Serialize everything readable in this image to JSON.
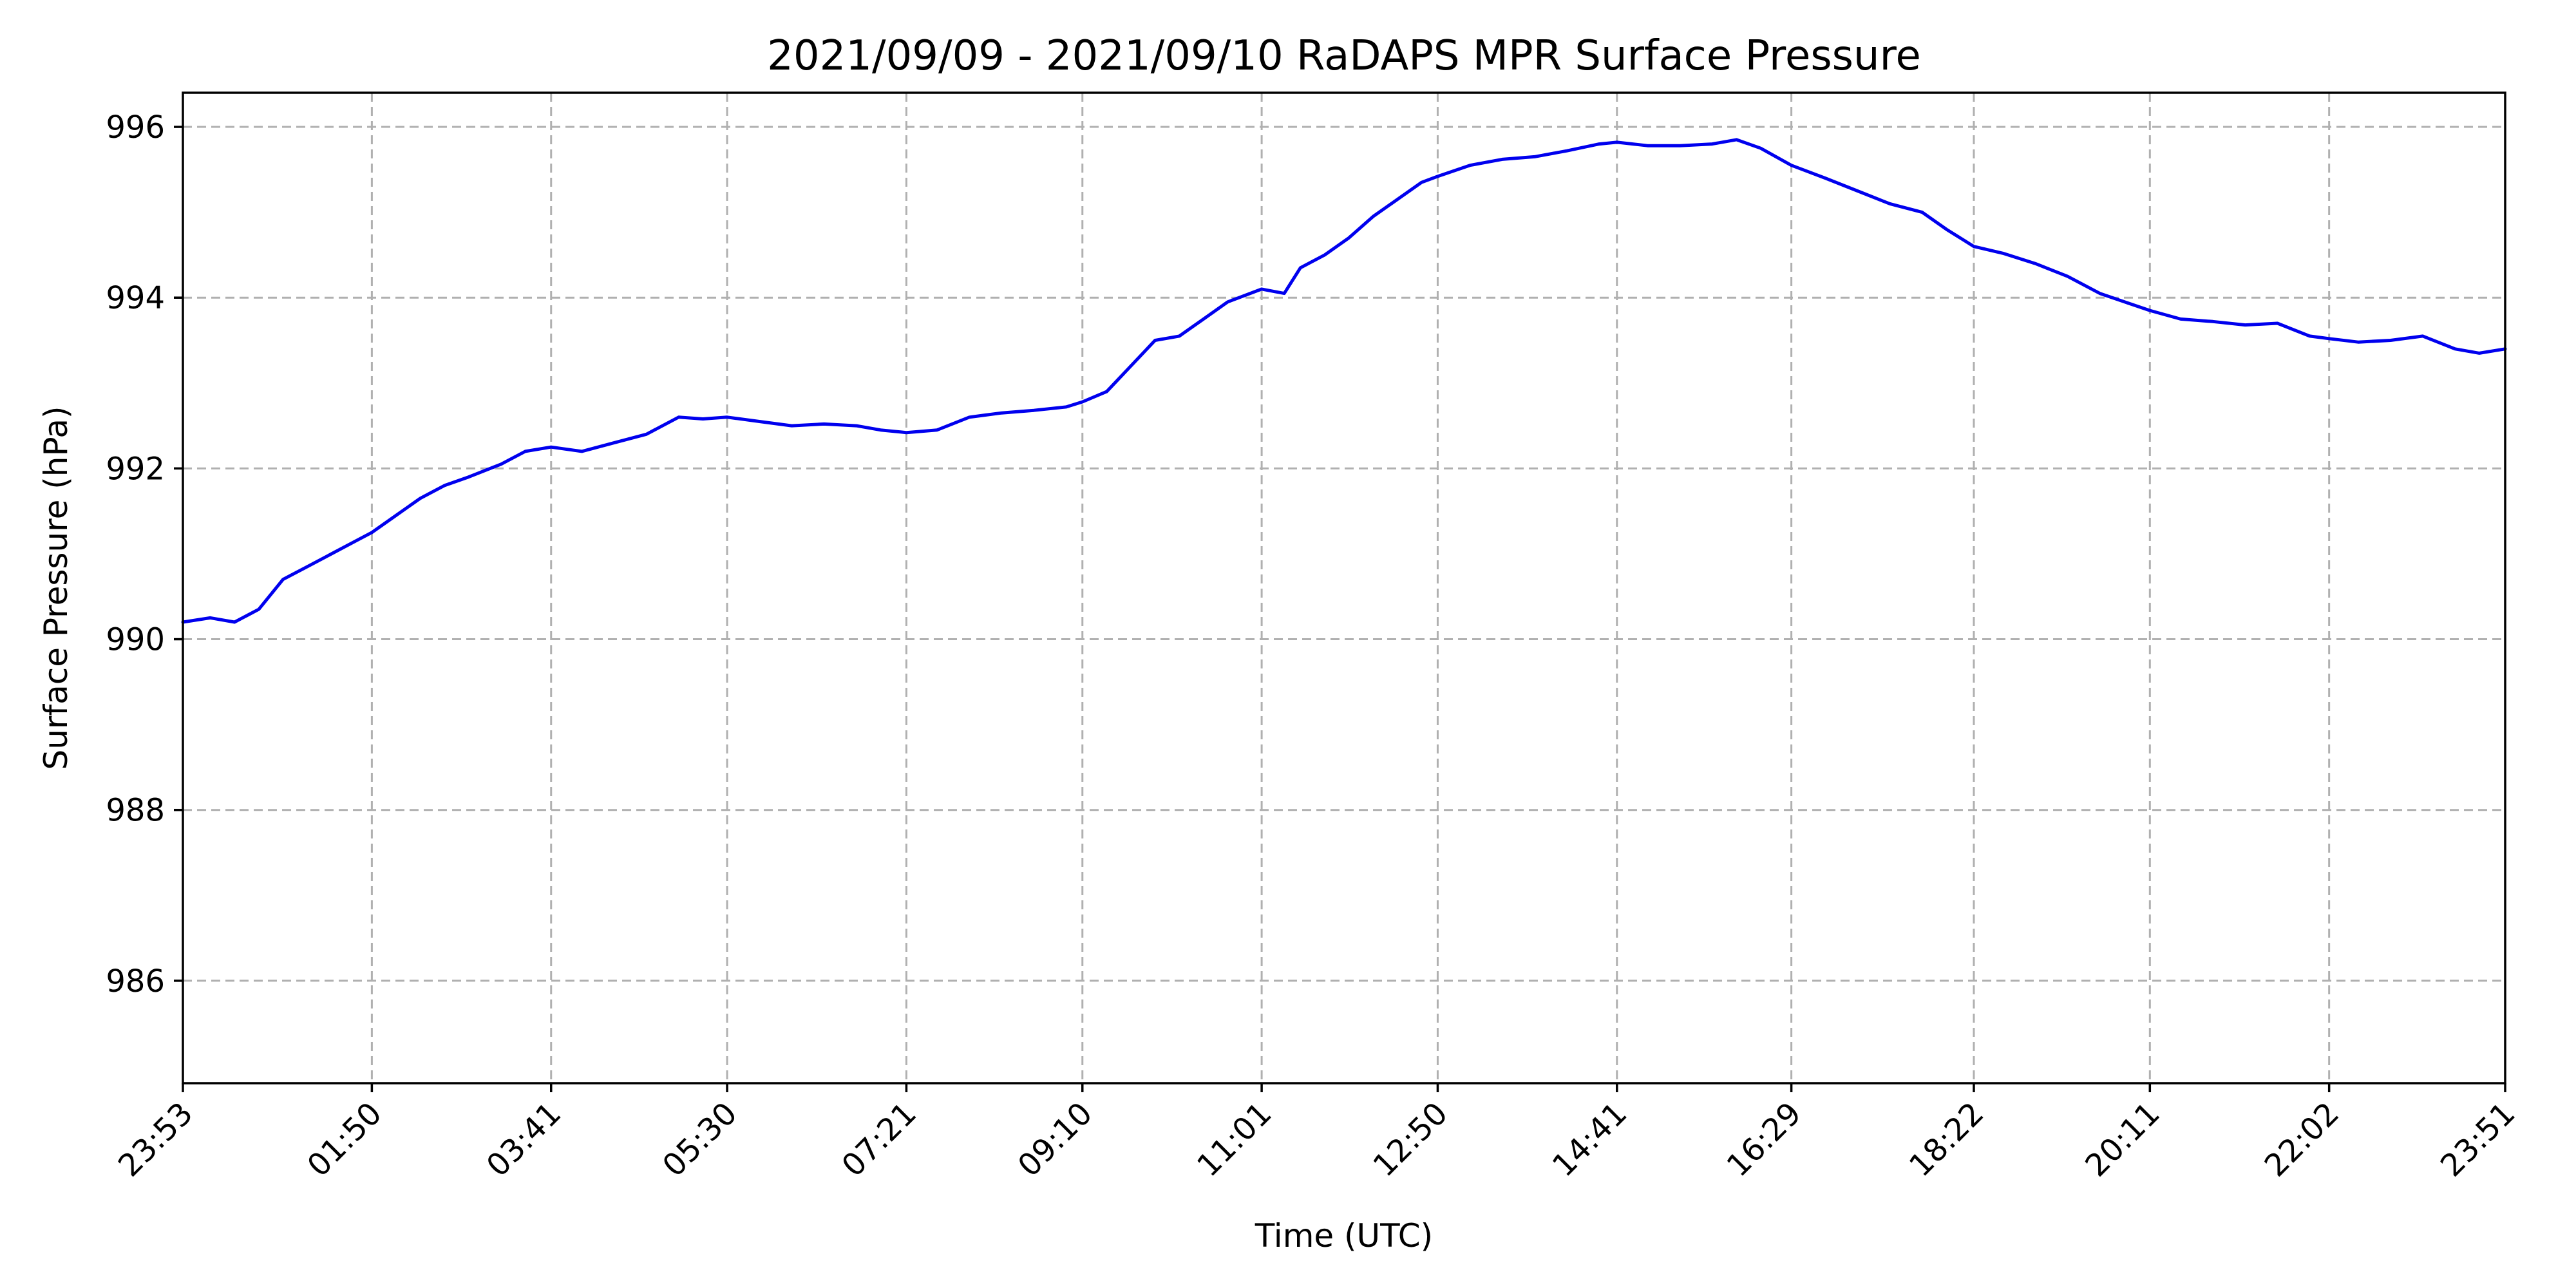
{
  "chart_data": {
    "type": "line",
    "title": "2021/09/09 - 2021/09/10 RaDAPS MPR Surface Pressure",
    "xlabel": "Time (UTC)",
    "ylabel": "Surface Pressure (hPa)",
    "xlim": [
      "2021-09-09T23:53",
      "2021-09-10T23:51"
    ],
    "ylim": [
      984.8,
      996.4
    ],
    "grid": true,
    "x_ticks": [
      {
        "label": "23:53",
        "time": "2021-09-09T23:53"
      },
      {
        "label": "01:50",
        "time": "2021-09-10T01:50"
      },
      {
        "label": "03:41",
        "time": "2021-09-10T03:41"
      },
      {
        "label": "05:30",
        "time": "2021-09-10T05:30"
      },
      {
        "label": "07:21",
        "time": "2021-09-10T07:21"
      },
      {
        "label": "09:10",
        "time": "2021-09-10T09:10"
      },
      {
        "label": "11:01",
        "time": "2021-09-10T11:01"
      },
      {
        "label": "12:50",
        "time": "2021-09-10T12:50"
      },
      {
        "label": "14:41",
        "time": "2021-09-10T14:41"
      },
      {
        "label": "16:29",
        "time": "2021-09-10T16:29"
      },
      {
        "label": "18:22",
        "time": "2021-09-10T18:22"
      },
      {
        "label": "20:11",
        "time": "2021-09-10T20:11"
      },
      {
        "label": "22:02",
        "time": "2021-09-10T22:02"
      },
      {
        "label": "23:51",
        "time": "2021-09-10T23:51"
      }
    ],
    "y_ticks": [
      986,
      988,
      990,
      992,
      994,
      996
    ],
    "series": [
      {
        "color": "#0000ee",
        "points": [
          [
            "2021-09-09T23:53",
            990.2
          ],
          [
            "2021-09-10T00:10",
            990.25
          ],
          [
            "2021-09-10T00:25",
            990.2
          ],
          [
            "2021-09-10T00:40",
            990.35
          ],
          [
            "2021-09-10T00:55",
            990.7
          ],
          [
            "2021-09-10T01:10",
            990.85
          ],
          [
            "2021-09-10T01:25",
            991.0
          ],
          [
            "2021-09-10T01:40",
            991.15
          ],
          [
            "2021-09-10T01:50",
            991.25
          ],
          [
            "2021-09-10T02:05",
            991.45
          ],
          [
            "2021-09-10T02:20",
            991.65
          ],
          [
            "2021-09-10T02:35",
            991.8
          ],
          [
            "2021-09-10T02:50",
            991.9
          ],
          [
            "2021-09-10T03:10",
            992.05
          ],
          [
            "2021-09-10T03:25",
            992.2
          ],
          [
            "2021-09-10T03:41",
            992.25
          ],
          [
            "2021-09-10T04:00",
            992.2
          ],
          [
            "2021-09-10T04:20",
            992.3
          ],
          [
            "2021-09-10T04:40",
            992.4
          ],
          [
            "2021-09-10T05:00",
            992.6
          ],
          [
            "2021-09-10T05:15",
            992.58
          ],
          [
            "2021-09-10T05:30",
            992.6
          ],
          [
            "2021-09-10T05:50",
            992.55
          ],
          [
            "2021-09-10T06:10",
            992.5
          ],
          [
            "2021-09-10T06:30",
            992.52
          ],
          [
            "2021-09-10T06:50",
            992.5
          ],
          [
            "2021-09-10T07:05",
            992.45
          ],
          [
            "2021-09-10T07:21",
            992.42
          ],
          [
            "2021-09-10T07:40",
            992.45
          ],
          [
            "2021-09-10T08:00",
            992.6
          ],
          [
            "2021-09-10T08:20",
            992.65
          ],
          [
            "2021-09-10T08:40",
            992.68
          ],
          [
            "2021-09-10T09:00",
            992.72
          ],
          [
            "2021-09-10T09:10",
            992.78
          ],
          [
            "2021-09-10T09:25",
            992.9
          ],
          [
            "2021-09-10T09:40",
            993.2
          ],
          [
            "2021-09-10T09:55",
            993.5
          ],
          [
            "2021-09-10T10:10",
            993.55
          ],
          [
            "2021-09-10T10:25",
            993.75
          ],
          [
            "2021-09-10T10:40",
            993.95
          ],
          [
            "2021-09-10T11:01",
            994.1
          ],
          [
            "2021-09-10T11:15",
            994.05
          ],
          [
            "2021-09-10T11:25",
            994.35
          ],
          [
            "2021-09-10T11:40",
            994.5
          ],
          [
            "2021-09-10T11:55",
            994.7
          ],
          [
            "2021-09-10T12:10",
            994.95
          ],
          [
            "2021-09-10T12:25",
            995.15
          ],
          [
            "2021-09-10T12:40",
            995.35
          ],
          [
            "2021-09-10T12:50",
            995.42
          ],
          [
            "2021-09-10T13:10",
            995.55
          ],
          [
            "2021-09-10T13:30",
            995.62
          ],
          [
            "2021-09-10T13:50",
            995.65
          ],
          [
            "2021-09-10T14:10",
            995.72
          ],
          [
            "2021-09-10T14:30",
            995.8
          ],
          [
            "2021-09-10T14:41",
            995.82
          ],
          [
            "2021-09-10T15:00",
            995.78
          ],
          [
            "2021-09-10T15:20",
            995.78
          ],
          [
            "2021-09-10T15:40",
            995.8
          ],
          [
            "2021-09-10T15:55",
            995.85
          ],
          [
            "2021-09-10T16:10",
            995.75
          ],
          [
            "2021-09-10T16:29",
            995.55
          ],
          [
            "2021-09-10T16:50",
            995.4
          ],
          [
            "2021-09-10T17:10",
            995.25
          ],
          [
            "2021-09-10T17:30",
            995.1
          ],
          [
            "2021-09-10T17:50",
            995.0
          ],
          [
            "2021-09-10T18:05",
            994.8
          ],
          [
            "2021-09-10T18:22",
            994.6
          ],
          [
            "2021-09-10T18:40",
            994.52
          ],
          [
            "2021-09-10T19:00",
            994.4
          ],
          [
            "2021-09-10T19:20",
            994.25
          ],
          [
            "2021-09-10T19:40",
            994.05
          ],
          [
            "2021-09-10T20:00",
            993.92
          ],
          [
            "2021-09-10T20:11",
            993.85
          ],
          [
            "2021-09-10T20:30",
            993.75
          ],
          [
            "2021-09-10T20:50",
            993.72
          ],
          [
            "2021-09-10T21:10",
            993.68
          ],
          [
            "2021-09-10T21:30",
            993.7
          ],
          [
            "2021-09-10T21:50",
            993.55
          ],
          [
            "2021-09-10T22:02",
            993.52
          ],
          [
            "2021-09-10T22:20",
            993.48
          ],
          [
            "2021-09-10T22:40",
            993.5
          ],
          [
            "2021-09-10T23:00",
            993.55
          ],
          [
            "2021-09-10T23:20",
            993.4
          ],
          [
            "2021-09-10T23:35",
            993.35
          ],
          [
            "2021-09-10T23:51",
            993.4
          ]
        ]
      }
    ]
  }
}
